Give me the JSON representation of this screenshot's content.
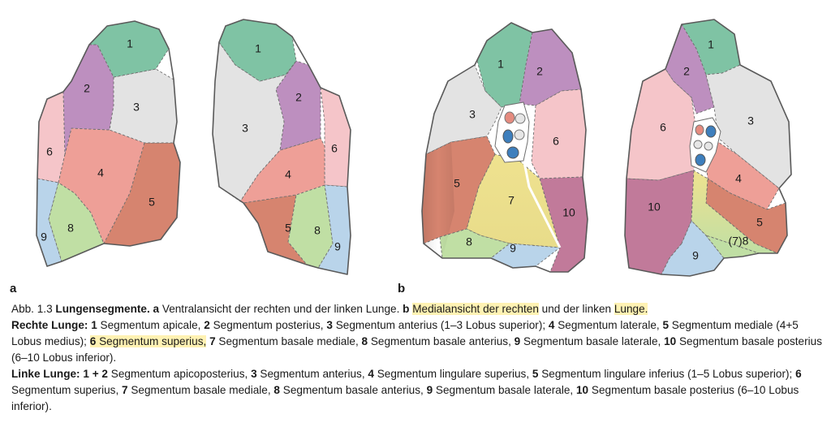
{
  "panels": {
    "a": {
      "label": "a",
      "right_lung": [
        "1",
        "2",
        "3",
        "4",
        "5",
        "6",
        "8",
        "9"
      ],
      "left_lung": [
        "1",
        "2",
        "3",
        "4",
        "5",
        "6",
        "8",
        "9"
      ]
    },
    "b": {
      "label": "b",
      "right_lung": [
        "1",
        "2",
        "3",
        "5",
        "6",
        "7",
        "8",
        "9",
        "10"
      ],
      "left_lung": [
        "1",
        "2",
        "3",
        "4",
        "5",
        "6",
        "(7)8",
        "9",
        "10"
      ]
    }
  },
  "colors": {
    "seg1": "#7fc3a4",
    "seg2": "#bd8fbf",
    "seg3": "#e3e3e3",
    "seg4": "#ee9f97",
    "seg5": "#d6846f",
    "seg6": "#f5c5c9",
    "seg7": "#efe28f",
    "seg8": "#c0dfa4",
    "seg9": "#b9d4ea",
    "seg10": "#c17a9a",
    "highlight": "#fff2b3"
  },
  "caption": {
    "line1": {
      "prefix": "Abb. 1.3  ",
      "title": "Lungensegmente.",
      "a_label": "a",
      "a_text": "Ventralansicht der rechten und der linken Lunge.",
      "b_label": "b",
      "b_highlight": "Medialansicht der rechten",
      "b_text": "und der linken",
      "b_highlight2": "Lunge."
    },
    "right": {
      "title": "Rechte Lunge:",
      "items": [
        {
          "num": "1",
          "text": "Segmentum apicale,"
        },
        {
          "num": "2",
          "text": "Segmentum posterius,"
        },
        {
          "num": "3",
          "text": "Segmentum anterius (1–3 Lobus superior);"
        },
        {
          "num": "4",
          "text": "Segmentum laterale,"
        },
        {
          "num": "5",
          "text": "Segmentum mediale (4+5 Lobus medius);"
        },
        {
          "num": "6",
          "text": "Segmentum superius,",
          "highlight": true
        },
        {
          "num": "7",
          "text": "Segmentum basale mediale,"
        },
        {
          "num": "8",
          "text": "Segmentum basale anterius,"
        },
        {
          "num": "9",
          "text": "Segmentum basale laterale,"
        },
        {
          "num": "10",
          "text": "Segmentum basale posterius (6–10 Lobus inferior)."
        }
      ]
    },
    "left": {
      "title": "Linke Lunge:",
      "items": [
        {
          "num": "1 + 2",
          "text": "Segmentum apicoposterius,"
        },
        {
          "num": "3",
          "text": "Segmentum anterius,"
        },
        {
          "num": "4",
          "text": "Segmentum lingulare superius,"
        },
        {
          "num": "5",
          "text": "Segmentum lingulare inferius (1–5 Lobus superior);"
        },
        {
          "num": "6",
          "text": "Segmentum superius,"
        },
        {
          "num": "7",
          "text": "Segmentum basale mediale,"
        },
        {
          "num": "8",
          "text": "Segmentum basale anterius,"
        },
        {
          "num": "9",
          "text": "Segmentum basale laterale,"
        },
        {
          "num": "10",
          "text": "Segmentum basale posterius (6–10 Lobus inferior)."
        }
      ]
    }
  }
}
